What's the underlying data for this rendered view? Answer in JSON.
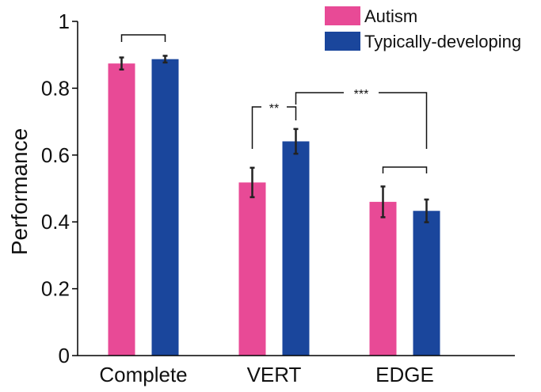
{
  "chart_data": {
    "type": "bar",
    "title": "",
    "xlabel": "",
    "ylabel": "Performance",
    "ylim": [
      0,
      1
    ],
    "yticks": [
      0,
      0.2,
      0.4,
      0.6,
      0.8,
      1
    ],
    "ytick_labels": [
      "0",
      "0.2",
      "0.4",
      "0.6",
      "0.8",
      "1"
    ],
    "categories": [
      "Complete",
      "VERT",
      "EDGE"
    ],
    "series": [
      {
        "name": "Autism",
        "color": "#e84a96",
        "values": [
          0.874,
          0.518,
          0.46
        ],
        "errors": [
          0.018,
          0.044,
          0.046
        ]
      },
      {
        "name": "Typically-developing",
        "color": "#1a469c",
        "values": [
          0.887,
          0.641,
          0.433
        ],
        "errors": [
          0.01,
          0.037,
          0.034
        ]
      }
    ],
    "legend": {
      "position": "top-right"
    },
    "grid": false,
    "significance": [
      {
        "id": "complete",
        "from": [
          "Complete",
          "Autism"
        ],
        "to": [
          "Complete",
          "Typically-developing"
        ],
        "label": ""
      },
      {
        "id": "vert",
        "from": [
          "VERT",
          "Autism"
        ],
        "to": [
          "VERT",
          "Typically-developing"
        ],
        "label": "**"
      },
      {
        "id": "edge",
        "from": [
          "EDGE",
          "Autism"
        ],
        "to": [
          "EDGE",
          "Typically-developing"
        ],
        "label": ""
      },
      {
        "id": "across",
        "from": [
          "VERT",
          "Typically-developing"
        ],
        "to": [
          "EDGE",
          "Typically-developing"
        ],
        "label": "***"
      }
    ]
  }
}
